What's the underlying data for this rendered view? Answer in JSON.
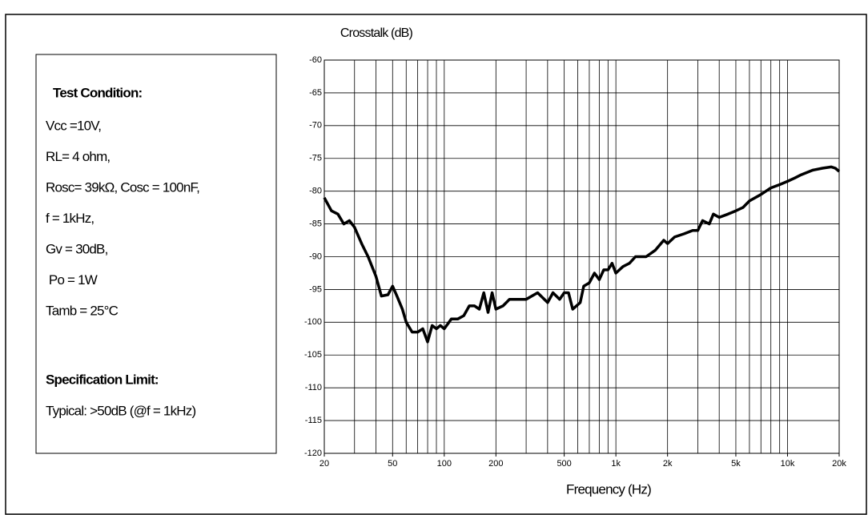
{
  "chart_data": {
    "type": "line",
    "title": "Crosstalk (dB)",
    "x_label": "Frequency (Hz)",
    "conditions": {
      "heading": "Test Condition:",
      "lines": [
        "Vcc =10V,",
        "RL= 4 ohm,",
        "Rosc= 39kΩ, Cosc = 100nF,",
        "f = 1kHz,",
        "Gv = 30dB,",
        " Po = 1W",
        "Tamb = 25°C"
      ],
      "limit_heading": "Specification Limit:",
      "limit": "Typical: >50dB (@f = 1kHz)"
    },
    "log_x": true,
    "grid": true,
    "color": "#000000",
    "xlim": [
      20,
      20000
    ],
    "ylim": [
      -120,
      -60
    ],
    "xticks": [
      20,
      50,
      100,
      200,
      500,
      {
        "value": 1000,
        "label": "1k"
      },
      {
        "value": 2000,
        "label": "2k"
      },
      {
        "value": 5000,
        "label": "5k"
      },
      {
        "value": 10000,
        "label": "10k"
      },
      {
        "value": 20000,
        "label": "20k"
      }
    ],
    "yticks": [
      -60,
      -65,
      -70,
      -75,
      -80,
      -85,
      -90,
      -95,
      -100,
      -105,
      -110,
      -115,
      -120
    ],
    "x": [
      20,
      22,
      24,
      26,
      28,
      30,
      33,
      36,
      40,
      43,
      47,
      50,
      53,
      57,
      60,
      65,
      70,
      75,
      80,
      85,
      90,
      95,
      100,
      110,
      120,
      130,
      140,
      150,
      160,
      170,
      180,
      190,
      200,
      220,
      240,
      270,
      300,
      350,
      400,
      430,
      470,
      500,
      530,
      560,
      620,
      650,
      700,
      750,
      800,
      850,
      900,
      950,
      1000,
      1100,
      1200,
      1300,
      1500,
      1700,
      1900,
      2000,
      2200,
      2500,
      2800,
      3000,
      3200,
      3500,
      3700,
      4000,
      4500,
      5000,
      5500,
      6000,
      7000,
      8000,
      9000,
      10000,
      11000,
      12000,
      14000,
      16000,
      18000,
      19000,
      20000
    ],
    "values": [
      -81,
      -83,
      -83.5,
      -85,
      -84.5,
      -85.5,
      -88,
      -90,
      -93,
      -96,
      -95.8,
      -94.5,
      -96,
      -98,
      -100,
      -101.5,
      -101.5,
      -101,
      -103,
      -100.5,
      -101,
      -100.5,
      -101,
      -99.5,
      -99.5,
      -99,
      -97.5,
      -97.5,
      -98,
      -95.5,
      -98.5,
      -95.5,
      -98,
      -97.5,
      -96.5,
      -96.5,
      -96.5,
      -95.5,
      -97,
      -95.5,
      -96.5,
      -95.5,
      -95.5,
      -98,
      -97,
      -94.5,
      -94,
      -92.5,
      -93.5,
      -92,
      -92,
      -91,
      -92.5,
      -91.5,
      -91,
      -90,
      -90,
      -89,
      -87.5,
      -88,
      -87,
      -86.5,
      -86,
      -86,
      -84.5,
      -85,
      -83.5,
      -84,
      -83.5,
      -83,
      -82.5,
      -81.5,
      -80.5,
      -79.5,
      -79,
      -78.5,
      -78,
      -77.5,
      -76.8,
      -76.5,
      -76.3,
      -76.5,
      -77
    ]
  }
}
